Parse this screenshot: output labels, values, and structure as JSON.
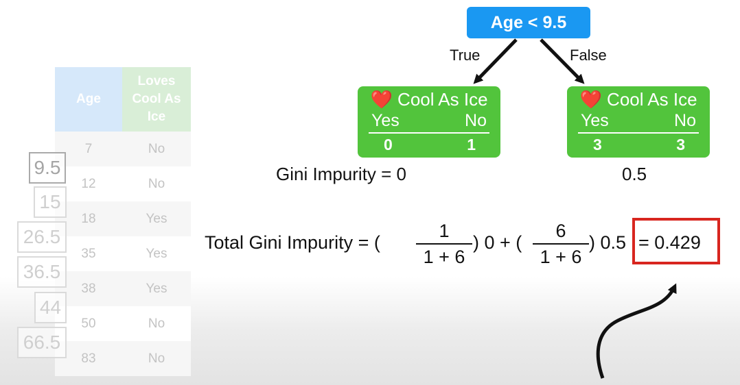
{
  "table": {
    "headers": {
      "age": "Age",
      "loves": [
        "Loves",
        "Cool As",
        "Ice"
      ]
    },
    "rows": [
      {
        "age": "7",
        "loves": "No"
      },
      {
        "age": "12",
        "loves": "No"
      },
      {
        "age": "18",
        "loves": "Yes"
      },
      {
        "age": "35",
        "loves": "Yes"
      },
      {
        "age": "38",
        "loves": "Yes"
      },
      {
        "age": "50",
        "loves": "No"
      },
      {
        "age": "83",
        "loves": "No"
      }
    ],
    "split_candidates": [
      "9.5",
      "15",
      "26.5",
      "36.5",
      "44",
      "66.5"
    ]
  },
  "tree": {
    "root": "Age < 9.5",
    "true_label": "True",
    "false_label": "False",
    "leaves": [
      {
        "heart": "❤️",
        "title": "Cool As Ice",
        "yes_label": "Yes",
        "no_label": "No",
        "yes_count": "0",
        "no_count": "1"
      },
      {
        "heart": "❤️",
        "title": "Cool As Ice",
        "yes_label": "Yes",
        "no_label": "No",
        "yes_count": "3",
        "no_count": "3"
      }
    ],
    "gini_left": "Gini Impurity = 0",
    "gini_right": "0.5"
  },
  "formula": {
    "lhs": "Total Gini Impurity = (",
    "frac1_num": "1",
    "frac1_den": "1 + 6",
    "mid1": ") 0 + (",
    "frac2_num": "6",
    "frac2_den": "1 + 6",
    "mid2": ") 0.5",
    "result": "= 0.429"
  },
  "colors": {
    "root_node": "#1a98f2",
    "leaf_node": "#52c43c",
    "highlight_box": "#d8261f",
    "age_header": "#d6e8fa",
    "loves_header": "#d9eed7"
  }
}
